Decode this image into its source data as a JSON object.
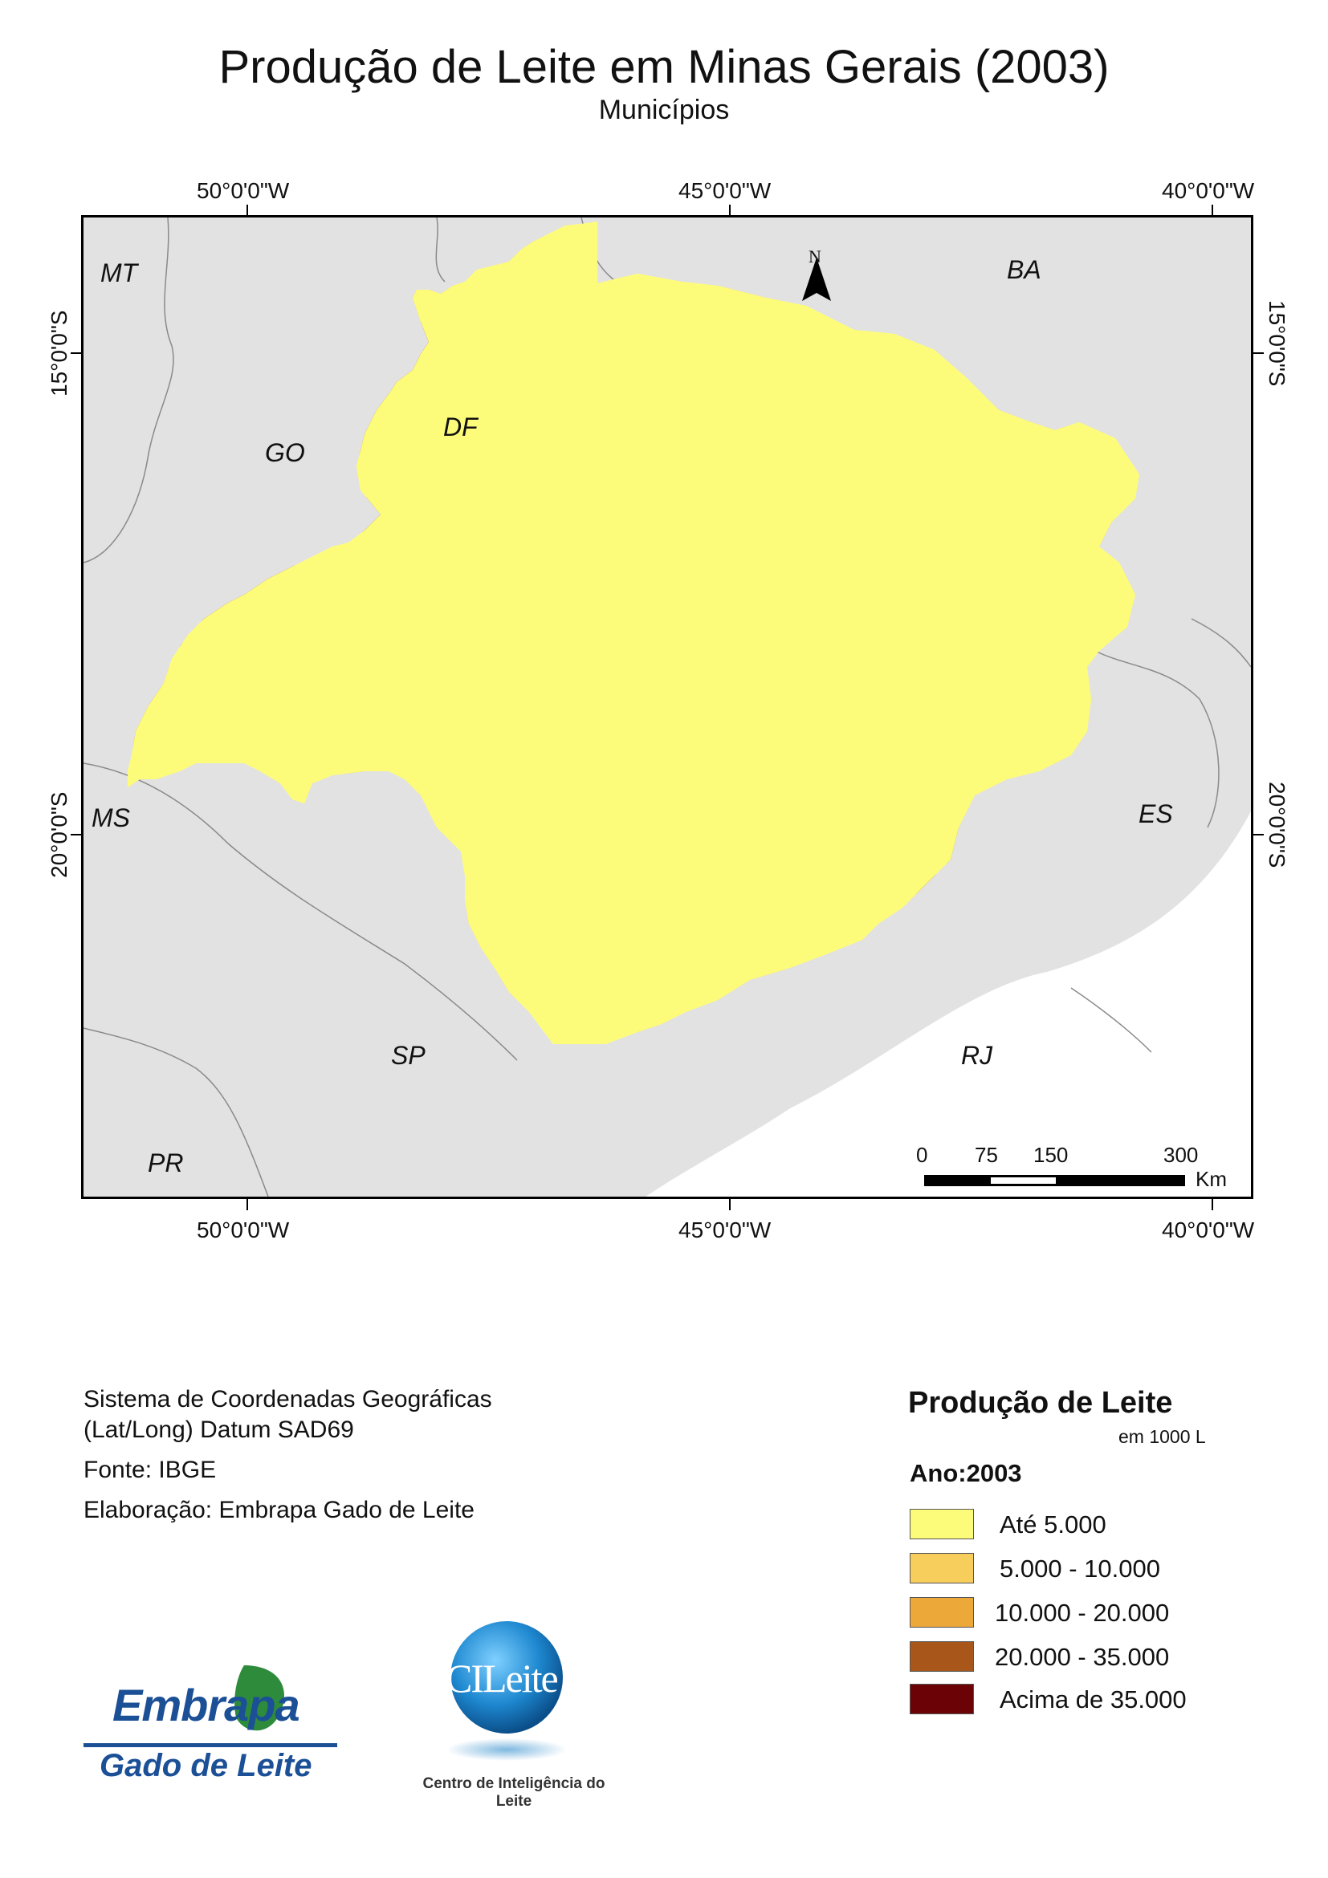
{
  "title": "Produção de Leite em Minas Gerais (2003)",
  "subtitle": "Municípios",
  "coordinates": {
    "lon_top": [
      "50°0'0\"W",
      "45°0'0\"W",
      "40°0'0\"W"
    ],
    "lon_bottom": [
      "50°0'0\"W",
      "45°0'0\"W",
      "40°0'0\"W"
    ],
    "lat_left": [
      "15°0'0\"S",
      "20°0'0\"S"
    ],
    "lat_right": [
      "15°0'0\"S",
      "20°0'0\"S"
    ]
  },
  "map": {
    "neighbor_states": [
      "MT",
      "BA",
      "GO",
      "DF",
      "MS",
      "ES",
      "SP",
      "RJ",
      "PR"
    ],
    "north_arrow": "N",
    "background_color": "#e2e2e2",
    "scale_bar": {
      "labels": [
        "0",
        "75",
        "150",
        "300"
      ],
      "unit": "Km"
    }
  },
  "info": {
    "line1": "Sistema de Coordenadas Geográficas",
    "line2": "(Lat/Long) Datum SAD69",
    "source": "Fonte: IBGE",
    "author": "Elaboração: Embrapa Gado de Leite"
  },
  "legend": {
    "title": "Produção de Leite",
    "unit": "em 1000 L",
    "year": "Ano:2003",
    "classes": [
      {
        "label": "Até 5.000",
        "color": "#fdfc7a"
      },
      {
        "label": "5.000 - 10.000",
        "color": "#f7cd5c"
      },
      {
        "label": "10.000 - 20.000",
        "color": "#eda83a"
      },
      {
        "label": "20.000 - 35.000",
        "color": "#a9561a"
      },
      {
        "label": "Acima de 35.000",
        "color": "#6b0205"
      }
    ]
  },
  "logos": {
    "embrapa_name": "Embrapa",
    "embrapa_sub": "Gado de Leite",
    "cileite_name": "CILeite",
    "cileite_caption": "Centro de Inteligência do Leite"
  }
}
